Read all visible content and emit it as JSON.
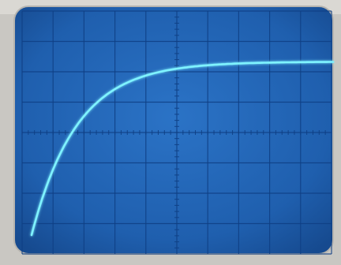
{
  "scene": {
    "subject": "oscilloscope-screen",
    "bezel_color": "#c9c7c2",
    "screen_color": "#1f5fae",
    "grid_color": "#0f3f84",
    "trace_color": "#7ff3ff",
    "grid": {
      "major_divisions_x": 10,
      "major_divisions_y": 8,
      "minor_ticks_per_division": 5
    },
    "trace": {
      "shape": "rising-exponential",
      "start_level": 0.0,
      "end_level": 0.82,
      "time_constant_fraction": 0.15
    }
  }
}
